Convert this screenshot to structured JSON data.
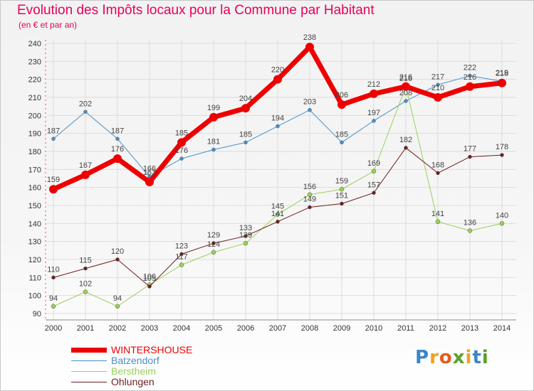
{
  "title": "Evolution des Impôts locaux pour la Commune par Habitant",
  "subtitle": "(en € et par an)",
  "logo": {
    "letters": [
      {
        "ch": "P",
        "color": "#3a86c8"
      },
      {
        "ch": "r",
        "color": "#f0a020"
      },
      {
        "ch": "o",
        "color": "#e85a1a"
      },
      {
        "ch": "x",
        "color": "#5aa02c"
      },
      {
        "ch": "i",
        "color": "#f0a020"
      },
      {
        "ch": "t",
        "color": "#3a86c8"
      },
      {
        "ch": "i",
        "color": "#5aa02c"
      }
    ]
  },
  "chart_data": {
    "type": "line",
    "x": [
      "2000",
      "2001",
      "2002",
      "2003",
      "2004",
      "2005",
      "2006",
      "2007",
      "2008",
      "2009",
      "2010",
      "2011",
      "2012",
      "2013",
      "2014"
    ],
    "ylim": [
      90,
      240
    ],
    "yticks": [
      "90",
      "100",
      "110",
      "120",
      "130",
      "140",
      "150",
      "160",
      "170",
      "180",
      "190",
      "200",
      "210",
      "220",
      "230",
      "240"
    ],
    "grid": true,
    "legend_position": "bottom-left",
    "series": [
      {
        "name": "Batzendorf",
        "color": "#4a90c8",
        "width": 1,
        "marker": 2.5,
        "values": [
          187,
          202,
          187,
          166,
          176,
          181,
          185,
          194,
          203,
          185,
          197,
          208,
          217,
          222,
          219
        ],
        "labels": [
          "187",
          "202",
          "187",
          "166",
          "176",
          "181",
          "185",
          "194",
          "203",
          "185",
          "197",
          "208",
          "217",
          "222",
          "219"
        ]
      },
      {
        "name": "Berstheim",
        "color": "#99d058",
        "width": 1,
        "marker": 3,
        "values": [
          94,
          102,
          94,
          106,
          117,
          124,
          129,
          145,
          156,
          159,
          169,
          216,
          141,
          136,
          140
        ],
        "labels": [
          "94",
          "102",
          "94",
          "106",
          "117",
          "124",
          "129",
          "145",
          "156",
          "159",
          "169",
          "216",
          "141",
          "136",
          "140"
        ]
      },
      {
        "name": "Ohlungen",
        "color": "#6e1e1e",
        "width": 1,
        "marker": 2.5,
        "values": [
          110,
          115,
          120,
          105,
          123,
          129,
          133,
          141,
          149,
          151,
          157,
          182,
          168,
          177,
          178
        ],
        "labels": [
          "110",
          "115",
          "120",
          "105",
          "123",
          "129",
          "133",
          "141",
          "149",
          "151",
          "157",
          "182",
          "168",
          "177",
          "178"
        ]
      },
      {
        "name": "WINTERSHOUSE",
        "color": "#ee0000",
        "width": 7,
        "marker": 6,
        "values": [
          159,
          167,
          176,
          163,
          185,
          199,
          204,
          220,
          238,
          206,
          212,
          216,
          210,
          216,
          218
        ],
        "labels": [
          "159",
          "167",
          "176",
          "163",
          "185",
          "199",
          "204",
          "220",
          "238",
          "206",
          "212",
          "216",
          "210",
          "216",
          "218"
        ]
      }
    ]
  },
  "legend": {
    "items": [
      {
        "label": "WINTERSHOUSE",
        "color": "#ee0000",
        "thickness": 7
      },
      {
        "label": "Batzendorf",
        "color": "#4a90c8",
        "thickness": 1
      },
      {
        "label": "Berstheim",
        "color": "#99d058",
        "thickness": 1
      },
      {
        "label": "Ohlungen",
        "color": "#6e1e1e",
        "thickness": 1
      }
    ]
  }
}
